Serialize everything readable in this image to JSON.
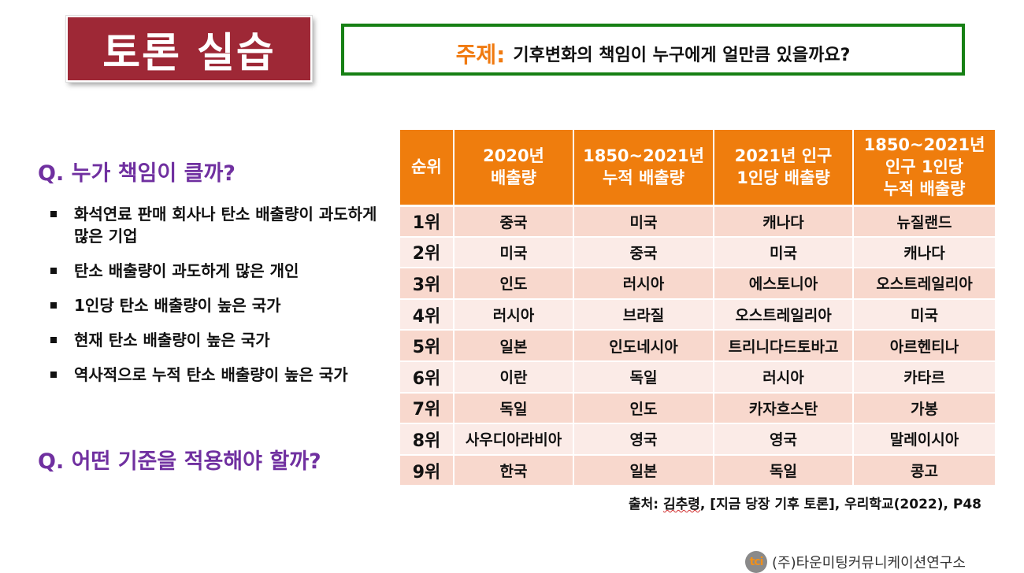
{
  "title": "토론 실습",
  "topic": {
    "label": "주제:",
    "text": "기후변화의 책임이 누구에게 얼만큼 있을까요?"
  },
  "colors": {
    "title_bg": "#9e2836",
    "topic_border": "#168014",
    "topic_label": "#f07a10",
    "question": "#7030a0",
    "table_header": "#ef7d0d",
    "row_odd": "#f8d8cd",
    "row_even": "#fbebe7"
  },
  "questions": {
    "q1": "Q. 누가 책임이 클까?",
    "q2": "Q. 어떤 기준을 적용해야 할까?"
  },
  "bullets": [
    "화석연료 판매 회사나 탄소 배출량이 과도하게 많은 기업",
    "탄소 배출량이 과도하게 많은 개인",
    "1인당 탄소 배출량이 높은 국가",
    "현재 탄소 배출량이 높은 국가",
    "역사적으로 누적 탄소 배출량이 높은 국가"
  ],
  "table": {
    "headers": [
      "순위",
      "2020년\n배출량",
      "1850~2021년\n누적 배출량",
      "2021년 인구\n1인당 배출량",
      "1850~2021년\n인구 1인당\n누적 배출량"
    ],
    "rows": [
      [
        "1위",
        "중국",
        "미국",
        "캐나다",
        "뉴질랜드"
      ],
      [
        "2위",
        "미국",
        "중국",
        "미국",
        "캐나다"
      ],
      [
        "3위",
        "인도",
        "러시아",
        "에스토니아",
        "오스트레일리아"
      ],
      [
        "4위",
        "러시아",
        "브라질",
        "오스트레일리아",
        "미국"
      ],
      [
        "5위",
        "일본",
        "인도네시아",
        "트리니다드토바고",
        "아르헨티나"
      ],
      [
        "6위",
        "이란",
        "독일",
        "러시아",
        "카타르"
      ],
      [
        "7위",
        "독일",
        "인도",
        "카자흐스탄",
        "가봉"
      ],
      [
        "8위",
        "사우디아라비아",
        "영국",
        "영국",
        "말레이시아"
      ],
      [
        "9위",
        "한국",
        "일본",
        "독일",
        "콩고"
      ]
    ]
  },
  "source": {
    "prefix": "출처: ",
    "author": "김추령",
    "rest": ", [지금 당장 기후 토론], 우리학교(2022), P48"
  },
  "footer": {
    "logo_text": "tci",
    "org": "(주)타운미팅커뮤니케이션연구소"
  }
}
